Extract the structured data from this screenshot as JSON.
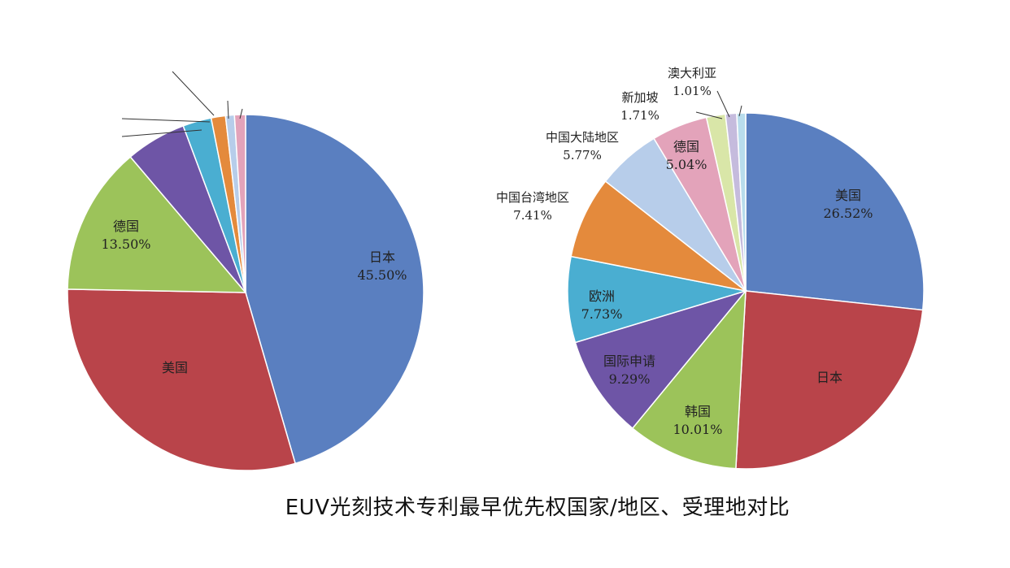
{
  "caption": "EUV光刻技术专利最早优先权国家/地区、受理地对比",
  "chart_data": [
    {
      "type": "pie",
      "name": "最早优先权国家/地区",
      "slices": [
        {
          "label": "日本",
          "value": 45.5,
          "value_label": "45.50%",
          "color": "#5a7fc0"
        },
        {
          "label": "美国",
          "value": 29.8,
          "value_label": "",
          "color": "#b9444a"
        },
        {
          "label": "德国",
          "value": 13.5,
          "value_label": "13.50%",
          "color": "#9cc35a"
        },
        {
          "label": "",
          "value": 5.5,
          "value_label": "",
          "color": "#6e55a6"
        },
        {
          "label": "",
          "value": 2.6,
          "value_label": "",
          "color": "#4aaed1"
        },
        {
          "label": "",
          "value": 1.3,
          "value_label": "",
          "color": "#e48a3c"
        },
        {
          "label": "",
          "value": 0.8,
          "value_label": "",
          "color": "#b7cdea"
        },
        {
          "label": "",
          "value": 1.0,
          "value_label": "",
          "color": "#e3a3ba"
        }
      ]
    },
    {
      "type": "pie",
      "name": "受理地",
      "slices": [
        {
          "label": "美国",
          "value": 26.52,
          "value_label": "26.52%",
          "color": "#5a7fc0"
        },
        {
          "label": "日本",
          "value": 24.0,
          "value_label": "",
          "color": "#b9444a"
        },
        {
          "label": "韩国",
          "value": 10.01,
          "value_label": "10.01%",
          "color": "#9cc35a"
        },
        {
          "label": "国际申请",
          "value": 9.29,
          "value_label": "9.29%",
          "color": "#6e55a6"
        },
        {
          "label": "欧洲",
          "value": 7.73,
          "value_label": "7.73%",
          "color": "#4aaed1"
        },
        {
          "label": "中国台湾地区",
          "value": 7.41,
          "value_label": "7.41%",
          "color": "#e48a3c"
        },
        {
          "label": "中国大陆地区",
          "value": 5.77,
          "value_label": "5.77%",
          "color": "#b7cdea"
        },
        {
          "label": "德国",
          "value": 5.04,
          "value_label": "5.04%",
          "color": "#e3a3ba"
        },
        {
          "label": "新加坡",
          "value": 1.71,
          "value_label": "1.71%",
          "color": "#d9e6a8"
        },
        {
          "label": "澳大利亚",
          "value": 1.01,
          "value_label": "1.01%",
          "color": "#c5bbdd"
        },
        {
          "label": "",
          "value": 0.8,
          "value_label": "",
          "color": "#b8dcec"
        }
      ]
    }
  ]
}
